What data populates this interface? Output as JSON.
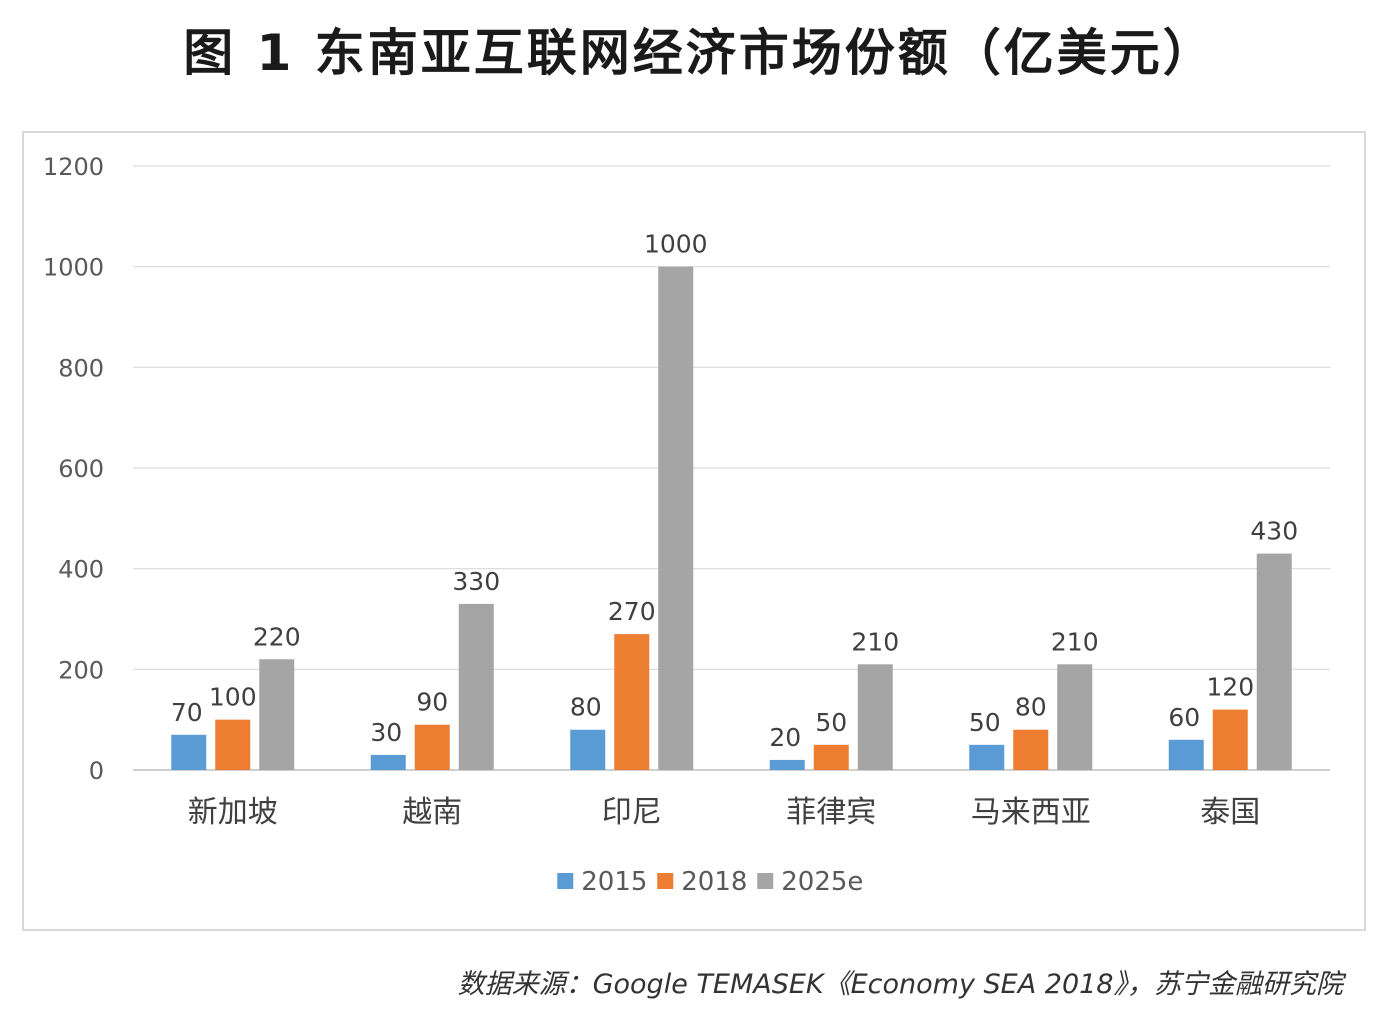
{
  "title": "图 1  东南亚互联网经济市场份额（亿美元）",
  "source": "数据来源：Google TEMASEK《Economy SEA 2018》，苏宁金融研究院",
  "chart_data": {
    "type": "bar",
    "title": "图 1  东南亚互联网经济市场份额（亿美元）",
    "xlabel": "",
    "ylabel": "",
    "categories": [
      "新加坡",
      "越南",
      "印尼",
      "菲律宾",
      "马来西亚",
      "泰国"
    ],
    "series": [
      {
        "name": "2015",
        "color": "#5b9bd5",
        "values": [
          70,
          30,
          80,
          20,
          50,
          60
        ]
      },
      {
        "name": "2018",
        "color": "#ed7d31",
        "values": [
          100,
          90,
          270,
          50,
          80,
          120
        ]
      },
      {
        "name": "2025e",
        "color": "#a5a5a5",
        "values": [
          220,
          330,
          1000,
          210,
          210,
          430
        ]
      }
    ],
    "ylim": [
      0,
      1200
    ],
    "yticks": [
      "0",
      "200",
      "400",
      "600",
      "800",
      "1000",
      "1200"
    ],
    "grid": true,
    "legend": "bottom",
    "data_labels": true
  }
}
